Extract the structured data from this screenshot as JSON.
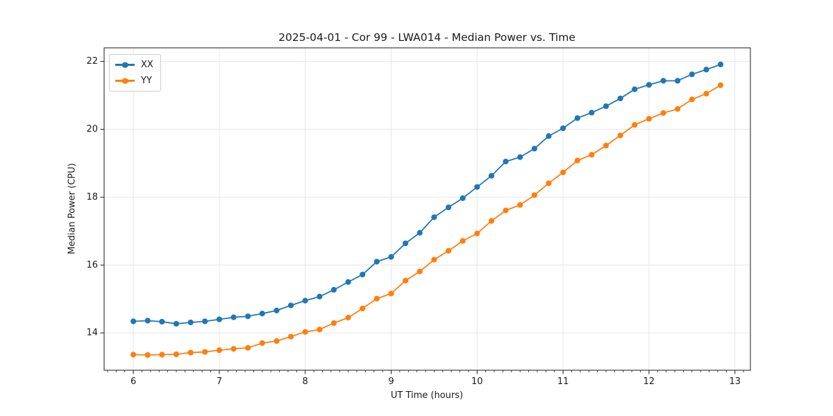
{
  "chart_data": {
    "type": "line",
    "title": "2025-04-01 - Cor 99 - LWA014 - Median Power vs. Time",
    "xlabel": "UT Time (hours)",
    "ylabel": "Median Power (CPU)",
    "xlim": [
      5.66,
      13.18
    ],
    "ylim": [
      12.9,
      22.4
    ],
    "xticks": [
      6,
      7,
      8,
      9,
      10,
      11,
      12,
      13
    ],
    "yticks": [
      14,
      16,
      18,
      20,
      22
    ],
    "minor_xtick_step": 0.1,
    "grid": true,
    "legend_position": "upper-left",
    "marker": "circle",
    "x": [
      6.0,
      6.167,
      6.333,
      6.5,
      6.667,
      6.833,
      7.0,
      7.167,
      7.333,
      7.5,
      7.667,
      7.833,
      8.0,
      8.167,
      8.333,
      8.5,
      8.667,
      8.833,
      9.0,
      9.167,
      9.333,
      9.5,
      9.667,
      9.833,
      10.0,
      10.167,
      10.333,
      10.5,
      10.667,
      10.833,
      11.0,
      11.167,
      11.333,
      11.5,
      11.667,
      11.833,
      12.0,
      12.167,
      12.333,
      12.5,
      12.667,
      12.833
    ],
    "series": [
      {
        "name": "XX",
        "color": "#1f77b4",
        "values": [
          14.34,
          14.36,
          14.33,
          14.27,
          14.31,
          14.34,
          14.4,
          14.46,
          14.49,
          14.57,
          14.66,
          14.81,
          14.95,
          15.07,
          15.27,
          15.5,
          15.72,
          16.1,
          16.24,
          16.64,
          16.95,
          17.41,
          17.7,
          17.97,
          18.3,
          18.63,
          19.05,
          19.18,
          19.43,
          19.8,
          20.03,
          20.33,
          20.49,
          20.68,
          20.91,
          21.18,
          21.31,
          21.43,
          21.43,
          21.62,
          21.76,
          21.91
        ]
      },
      {
        "name": "YY",
        "color": "#ff7f0e",
        "values": [
          13.36,
          13.35,
          13.36,
          13.37,
          13.42,
          13.44,
          13.49,
          13.53,
          13.56,
          13.7,
          13.76,
          13.89,
          14.03,
          14.1,
          14.29,
          14.45,
          14.72,
          15.01,
          15.16,
          15.54,
          15.81,
          16.16,
          16.42,
          16.71,
          16.93,
          17.3,
          17.61,
          17.77,
          18.06,
          18.41,
          18.73,
          19.08,
          19.25,
          19.52,
          19.82,
          20.13,
          20.31,
          20.48,
          20.6,
          20.88,
          21.05,
          21.3
        ]
      }
    ],
    "colors": {
      "grid": "#e7e7e7",
      "spine": "#1a1a1a",
      "tick_text": "#1a1a1a"
    }
  }
}
